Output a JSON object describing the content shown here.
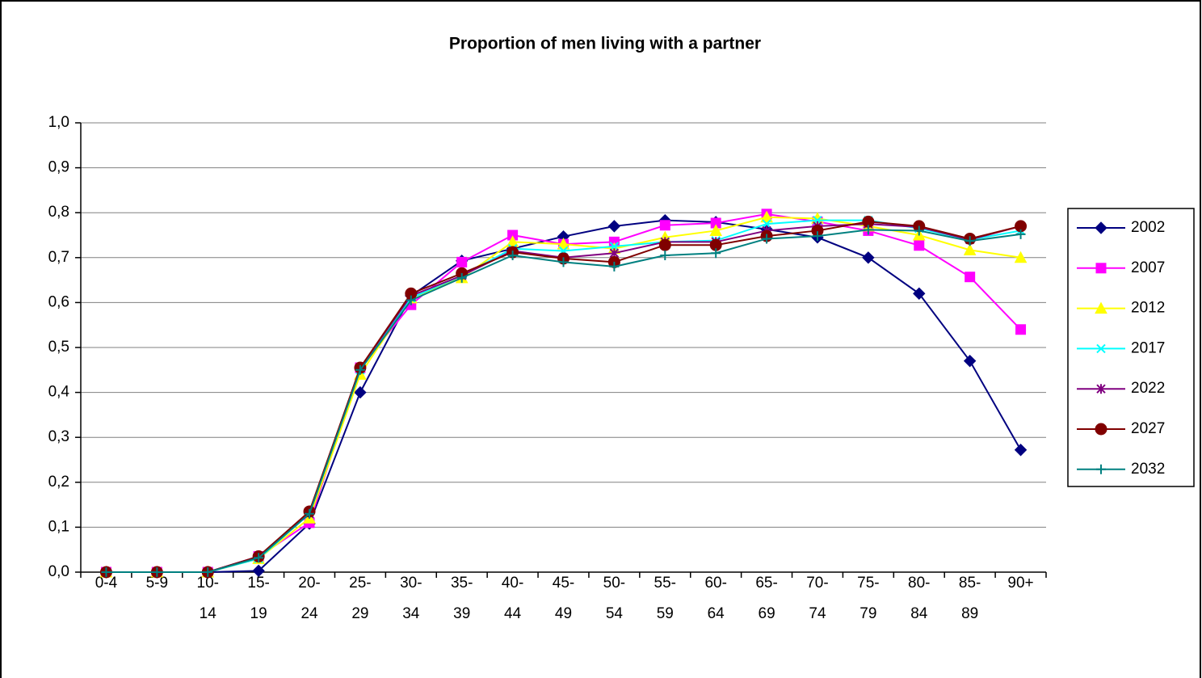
{
  "chart_data": {
    "type": "line",
    "title": "Proportion of men living with a partner",
    "categories": [
      "0-4",
      "5-9",
      "10-14",
      "15-19",
      "20-24",
      "25-29",
      "30-34",
      "35-39",
      "40-44",
      "45-49",
      "50-54",
      "55-59",
      "60-64",
      "65-69",
      "70-74",
      "75-79",
      "80-84",
      "85-89",
      "90+"
    ],
    "series": [
      {
        "name": "2002",
        "color": "#000080",
        "marker": "diamond",
        "values": [
          0,
          0,
          0,
          0.003,
          0.108,
          0.4,
          0.615,
          0.693,
          0.72,
          0.747,
          0.77,
          0.783,
          0.779,
          0.763,
          0.745,
          0.7,
          0.62,
          0.47,
          0.272
        ]
      },
      {
        "name": "2007",
        "color": "#ff00ff",
        "marker": "square",
        "values": [
          0,
          0,
          0,
          0.035,
          0.11,
          0.455,
          0.595,
          0.69,
          0.75,
          0.73,
          0.735,
          0.772,
          0.777,
          0.797,
          0.78,
          0.76,
          0.727,
          0.657,
          0.54
        ]
      },
      {
        "name": "2012",
        "color": "#ffff00",
        "marker": "triangle",
        "values": [
          0,
          0,
          0,
          0.03,
          0.12,
          0.44,
          0.61,
          0.655,
          0.735,
          0.73,
          0.72,
          0.745,
          0.76,
          0.79,
          0.787,
          0.77,
          0.75,
          0.717,
          0.7
        ]
      },
      {
        "name": "2017",
        "color": "#00ffff",
        "marker": "x",
        "values": [
          0,
          0,
          0,
          0.03,
          0.13,
          0.45,
          0.61,
          0.66,
          0.72,
          0.715,
          0.725,
          0.735,
          0.738,
          0.775,
          0.783,
          0.783,
          0.765,
          0.74,
          0.76
        ]
      },
      {
        "name": "2022",
        "color": "#800080",
        "marker": "star",
        "values": [
          0,
          0,
          0,
          0.035,
          0.13,
          0.455,
          0.615,
          0.66,
          0.715,
          0.7,
          0.71,
          0.735,
          0.735,
          0.76,
          0.77,
          0.775,
          0.768,
          0.74,
          0.77
        ]
      },
      {
        "name": "2027",
        "color": "#800000",
        "marker": "circle",
        "values": [
          0,
          0,
          0,
          0.035,
          0.135,
          0.455,
          0.62,
          0.665,
          0.712,
          0.698,
          0.69,
          0.728,
          0.728,
          0.748,
          0.76,
          0.78,
          0.77,
          0.742,
          0.77
        ]
      },
      {
        "name": "2032",
        "color": "#008080",
        "marker": "plus",
        "values": [
          0,
          0,
          0,
          0.032,
          0.13,
          0.45,
          0.605,
          0.655,
          0.705,
          0.69,
          0.68,
          0.705,
          0.71,
          0.742,
          0.748,
          0.762,
          0.76,
          0.737,
          0.752
        ]
      }
    ],
    "ylim": [
      0,
      1
    ],
    "yticks": [
      {
        "value": 0,
        "label": "0,0"
      },
      {
        "value": 0.1,
        "label": "0,1"
      },
      {
        "value": 0.2,
        "label": "0,2"
      },
      {
        "value": 0.3,
        "label": "0,3"
      },
      {
        "value": 0.4,
        "label": "0,4"
      },
      {
        "value": 0.5,
        "label": "0,5"
      },
      {
        "value": 0.6,
        "label": "0,6"
      },
      {
        "value": 0.7,
        "label": "0,7"
      },
      {
        "value": 0.8,
        "label": "0,8"
      },
      {
        "value": 0.9,
        "label": "0,9"
      },
      {
        "value": 1,
        "label": "1,0"
      }
    ],
    "grid": true,
    "legend": "right"
  }
}
